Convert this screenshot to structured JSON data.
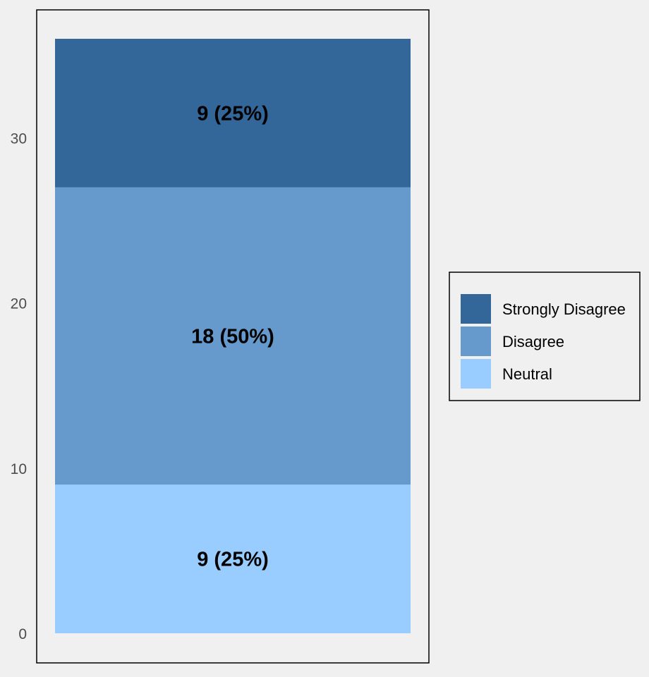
{
  "chart_data": {
    "type": "bar",
    "stacked": true,
    "categories": [
      ""
    ],
    "series": [
      {
        "name": "Neutral",
        "values": [
          9
        ],
        "label": "9 (25%)",
        "color": "#99ccff"
      },
      {
        "name": "Disagree",
        "values": [
          18
        ],
        "label": "18 (50%)",
        "color": "#6699cc"
      },
      {
        "name": "Strongly Disagree",
        "values": [
          9
        ],
        "label": "9 (25%)",
        "color": "#336699"
      }
    ],
    "title": "",
    "xlabel": "",
    "ylabel": "",
    "ylim": [
      0,
      36
    ],
    "yticks": [
      0,
      10,
      20,
      30
    ],
    "ytick_labels": [
      "0",
      "10",
      "20",
      "30"
    ],
    "grid": false,
    "legend": {
      "position": "right",
      "order": [
        "Strongly Disagree",
        "Disagree",
        "Neutral"
      ]
    },
    "colors": {
      "background": "#f0f0f0",
      "axis": "#000000",
      "tick_text": "#4d4d4d"
    }
  }
}
